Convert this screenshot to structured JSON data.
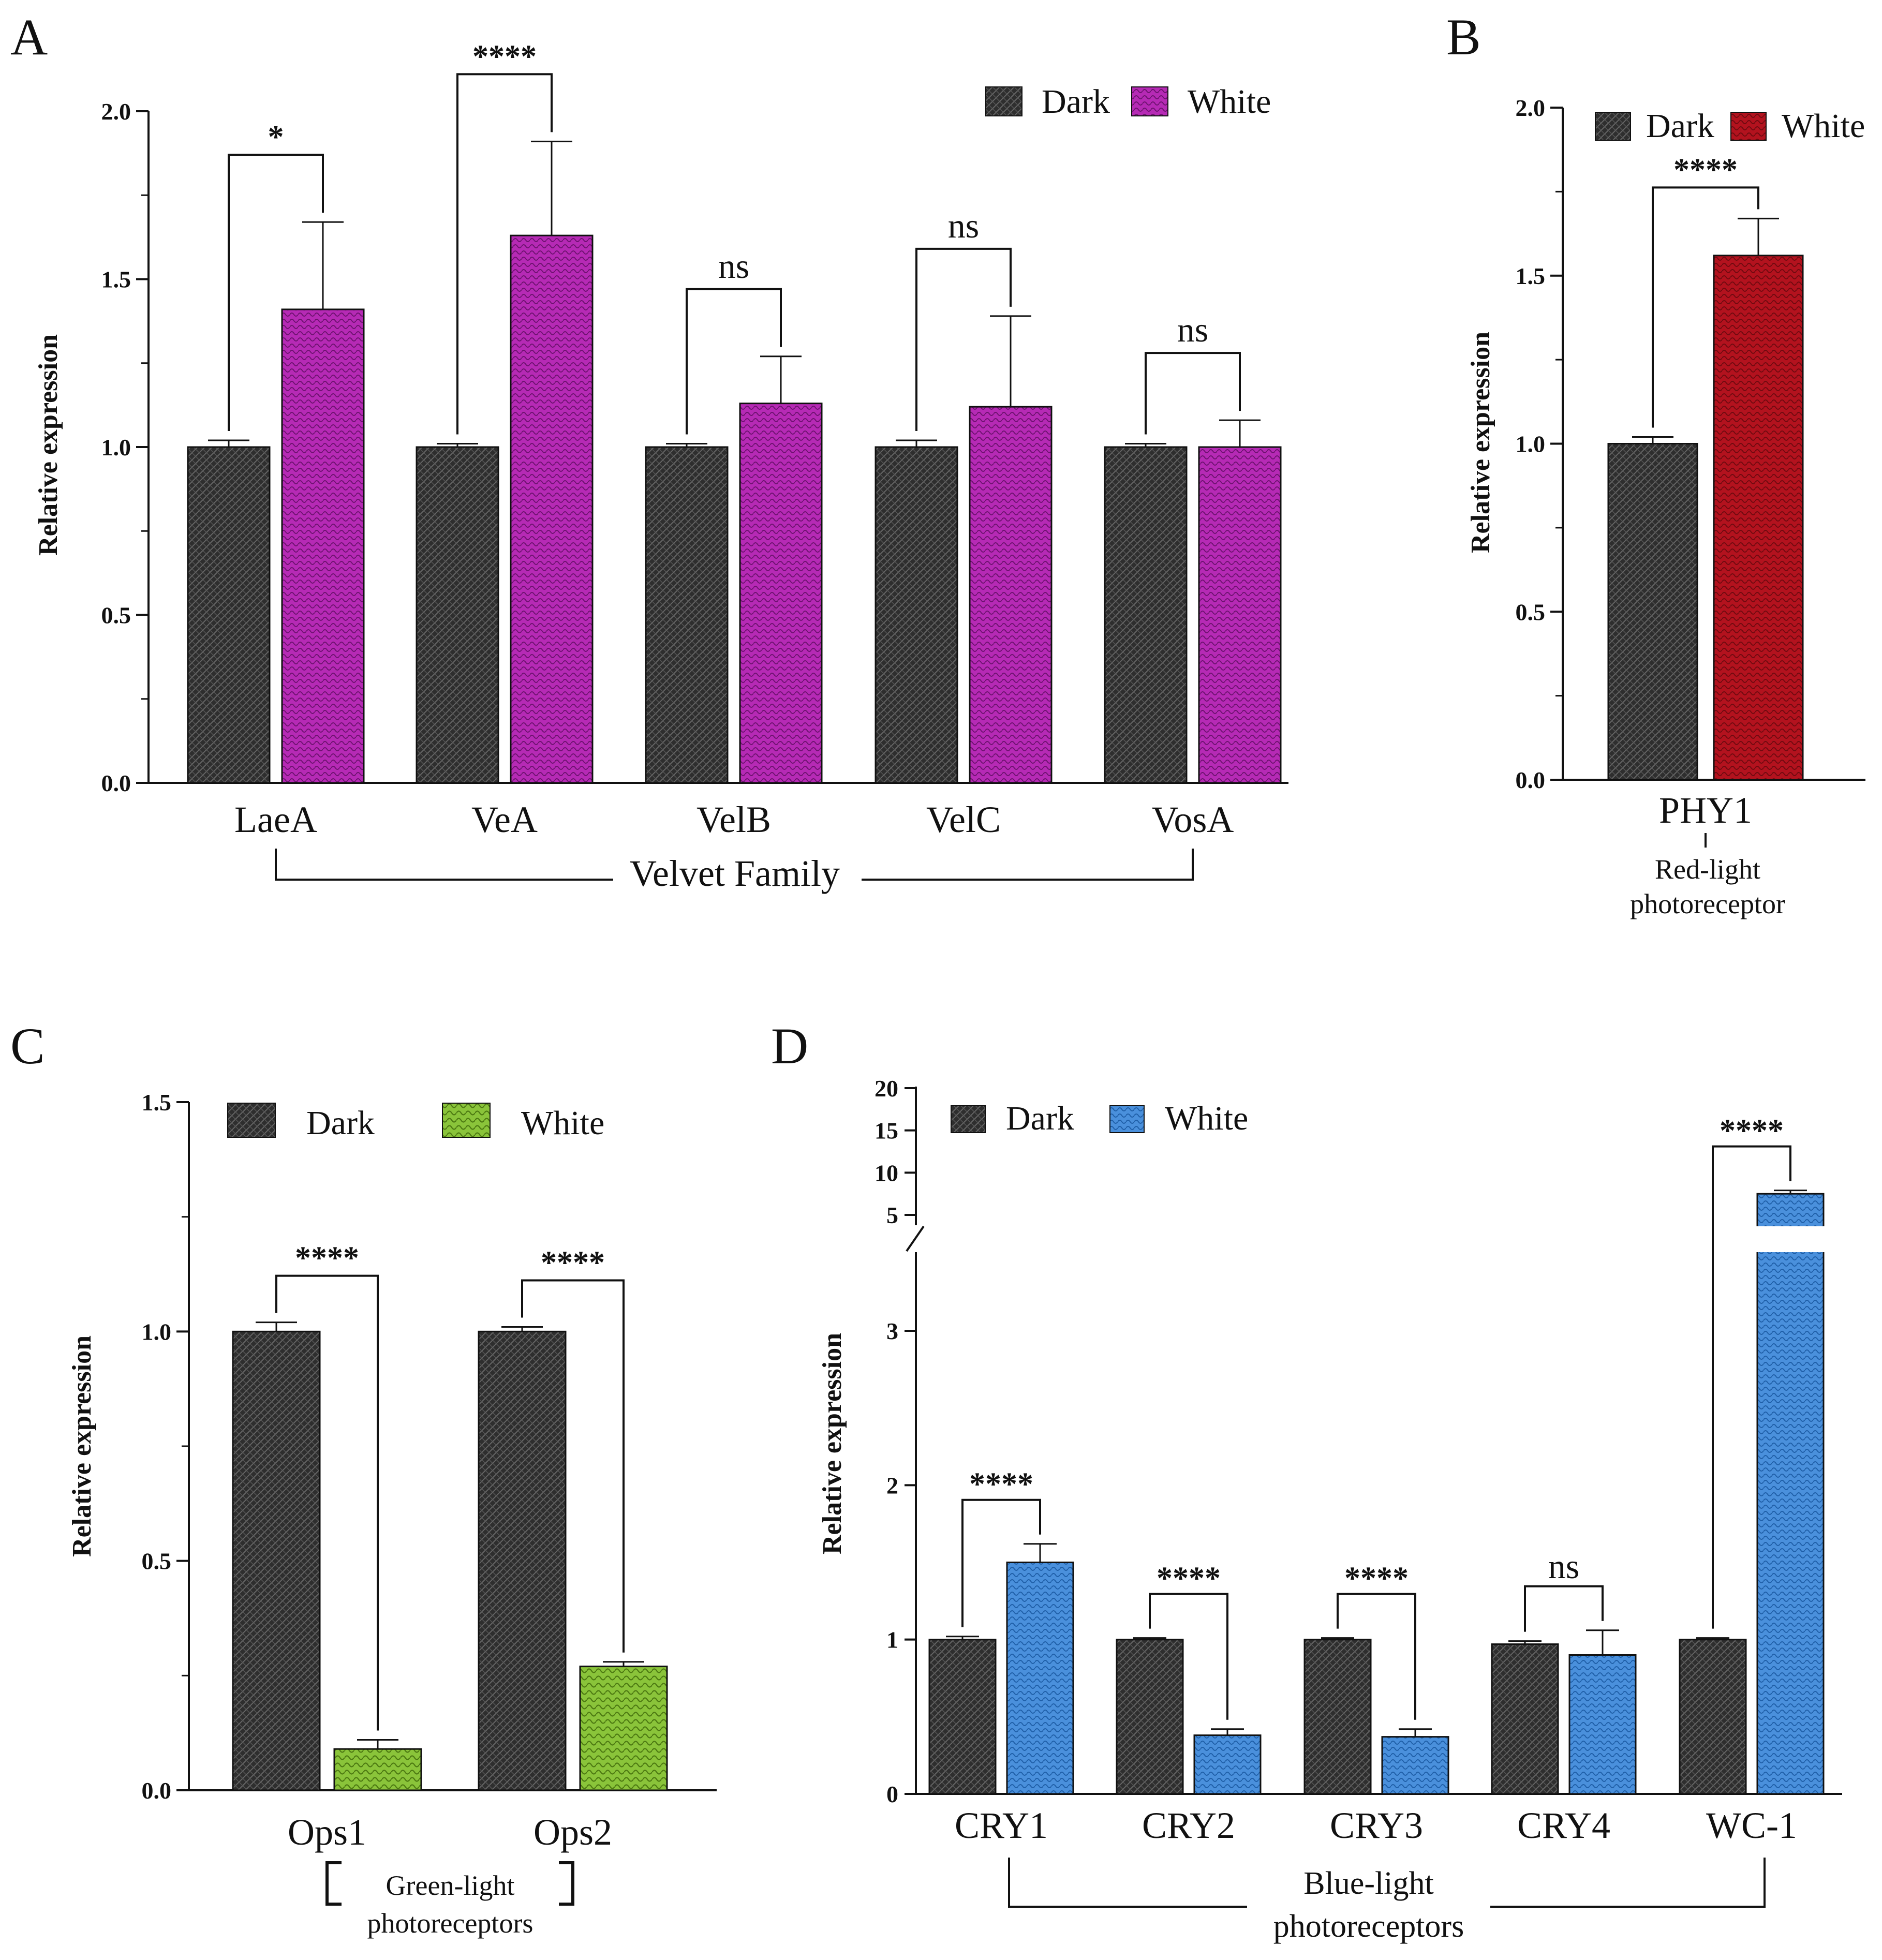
{
  "chart_data": [
    {
      "panel": "A",
      "type": "bar",
      "ylabel": "Relative expression",
      "ylim": [
        0,
        2.0
      ],
      "yticks": [
        "0.0",
        "0.5",
        "1.0",
        "1.5",
        "2.0"
      ],
      "categories": [
        "LaeA",
        "VeA",
        "VelB",
        "VelC",
        "VosA"
      ],
      "series": [
        {
          "name": "Dark",
          "color": "#333333",
          "values": [
            1.0,
            1.0,
            1.0,
            1.0,
            1.0
          ],
          "errors": [
            0.02,
            0.01,
            0.01,
            0.02,
            0.01
          ]
        },
        {
          "name": "White",
          "color": "#b62ab5",
          "values": [
            1.41,
            1.63,
            1.13,
            1.12,
            1.0
          ],
          "errors": [
            0.26,
            0.28,
            0.14,
            0.27,
            0.08
          ]
        }
      ],
      "significance": [
        "*",
        "****",
        "ns",
        "ns",
        "ns"
      ],
      "group_label": "Velvet Family",
      "legend": [
        "Dark",
        "White"
      ]
    },
    {
      "panel": "B",
      "type": "bar",
      "ylabel": "Relative expression",
      "ylim": [
        0,
        2.0
      ],
      "yticks": [
        "0.0",
        "0.5",
        "1.0",
        "1.5",
        "2.0"
      ],
      "categories": [
        "PHY1"
      ],
      "series": [
        {
          "name": "Dark",
          "color": "#333333",
          "values": [
            1.0
          ],
          "errors": [
            0.02
          ]
        },
        {
          "name": "White",
          "color": "#b3121e",
          "values": [
            1.56
          ],
          "errors": [
            0.11
          ]
        }
      ],
      "significance": [
        "****"
      ],
      "group_label": [
        "Red-light",
        "photoreceptor"
      ],
      "legend": [
        "Dark",
        "White"
      ]
    },
    {
      "panel": "C",
      "type": "bar",
      "ylabel": "Relative expression",
      "ylim": [
        0,
        1.5
      ],
      "yticks": [
        "0.0",
        "0.5",
        "1.0",
        "1.5"
      ],
      "categories": [
        "Ops1",
        "Ops2"
      ],
      "series": [
        {
          "name": "Dark",
          "color": "#333333",
          "values": [
            1.0,
            1.0
          ],
          "errors": [
            0.02,
            0.01
          ]
        },
        {
          "name": "White",
          "color": "#8ac43a",
          "values": [
            0.09,
            0.27
          ],
          "errors": [
            0.02,
            0.01
          ]
        }
      ],
      "significance": [
        "****",
        "****"
      ],
      "group_label": [
        "Green-light",
        "photoreceptors"
      ],
      "legend": [
        "Dark",
        "White"
      ]
    },
    {
      "panel": "D",
      "type": "bar",
      "ylabel": "Relative expression",
      "ylim": [
        0,
        20
      ],
      "axis_break": [
        3.5,
        4.0
      ],
      "yticks": [
        "0",
        "1",
        "2",
        "3",
        "5",
        "10",
        "15",
        "20"
      ],
      "categories": [
        "CRY1",
        "CRY2",
        "CRY3",
        "CRY4",
        "WC-1"
      ],
      "series": [
        {
          "name": "Dark",
          "color": "#333333",
          "values": [
            1.0,
            1.0,
            1.0,
            0.97,
            1.0
          ],
          "errors": [
            0.02,
            0.01,
            0.01,
            0.02,
            0.01
          ]
        },
        {
          "name": "White",
          "color": "#4a90dc",
          "values": [
            1.5,
            0.38,
            0.37,
            0.9,
            7.5
          ],
          "errors": [
            0.12,
            0.04,
            0.05,
            0.16,
            0.4
          ]
        }
      ],
      "significance": [
        "****",
        "****",
        "****",
        "ns",
        "****"
      ],
      "group_label": [
        "Blue-light",
        "photoreceptors"
      ],
      "legend": [
        "Dark",
        "White"
      ]
    }
  ]
}
